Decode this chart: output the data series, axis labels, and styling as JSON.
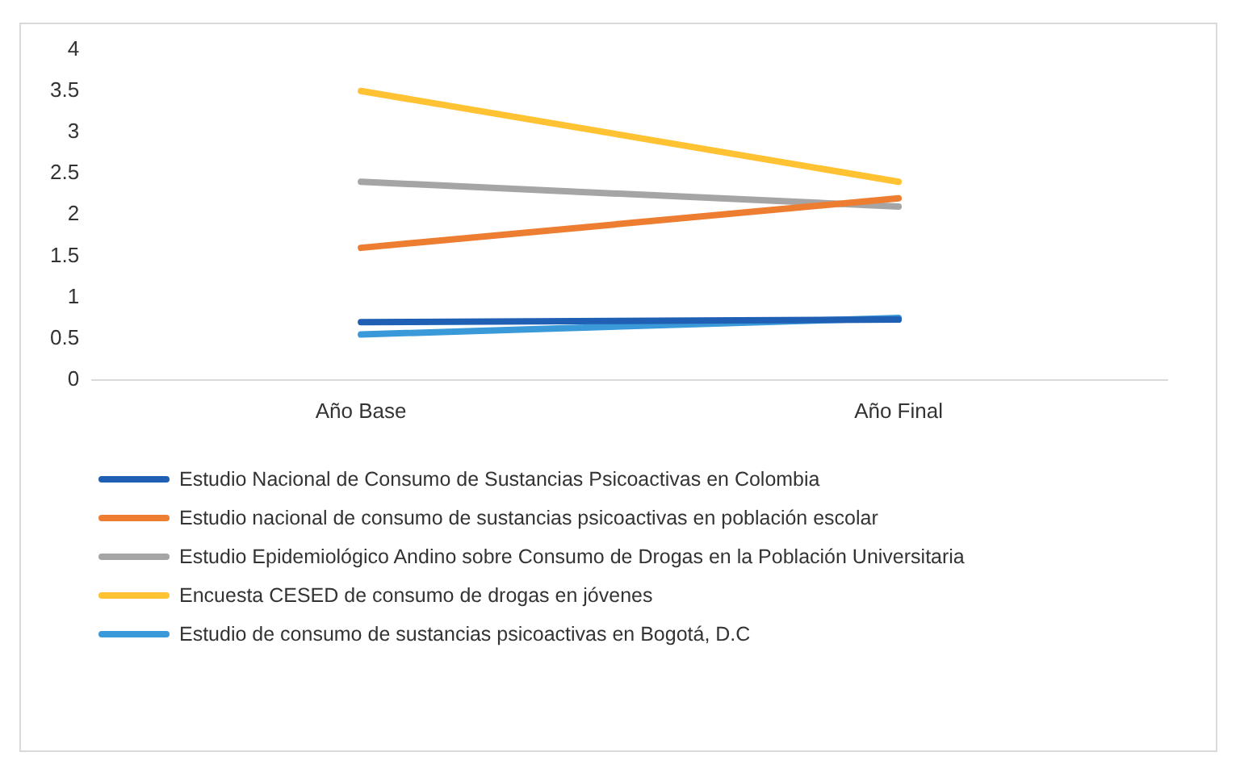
{
  "chart_data": {
    "type": "line",
    "categories": [
      "Año Base",
      "Año Final"
    ],
    "series": [
      {
        "name": "Estudio Nacional de Consumo de Sustancias Psicoactivas en Colombia",
        "color": "#1f5fb4",
        "values": [
          0.7,
          0.73
        ]
      },
      {
        "name": "Estudio nacional de consumo de sustancias psicoactivas en población escolar",
        "color": "#ed7d31",
        "values": [
          1.6,
          2.2
        ]
      },
      {
        "name": "Estudio Epidemiológico Andino sobre Consumo de Drogas en la Población Universitaria",
        "color": "#a5a5a5",
        "values": [
          2.4,
          2.1
        ]
      },
      {
        "name": "Encuesta CESED de consumo de drogas en jóvenes",
        "color": "#ffc233",
        "values": [
          3.5,
          2.4
        ]
      },
      {
        "name": "Estudio de consumo de sustancias psicoactivas en Bogotá, D.C",
        "color": "#3a9ad9",
        "values": [
          0.55,
          0.75
        ]
      }
    ],
    "ylim": [
      0,
      4
    ],
    "yticks": [
      0,
      0.5,
      1,
      1.5,
      2,
      2.5,
      3,
      3.5,
      4
    ],
    "grid": false,
    "legend": "bottom",
    "marker": "none",
    "line_style": "solid"
  }
}
